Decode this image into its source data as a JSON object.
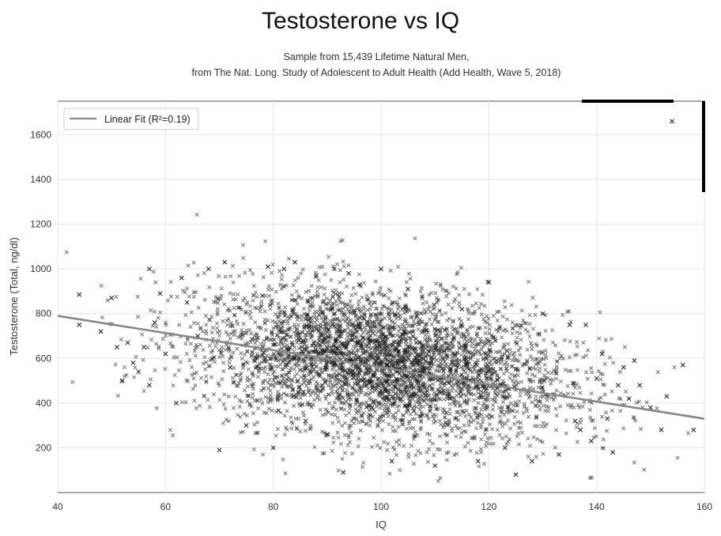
{
  "chart_data": {
    "type": "scatter",
    "title": "Testosterone vs IQ",
    "subtitle_lines": [
      "Sample from 15,439 Lifetime Natural Men,",
      "from The Nat. Long. Study of Adolescent to Adult Health (Add Health, Wave 5, 2018)"
    ],
    "xlabel": "IQ",
    "ylabel": "Testosterone (Total, ng/dl)",
    "xlim": [
      40,
      160
    ],
    "ylim": [
      0,
      1750
    ],
    "x_ticks": [
      40,
      60,
      80,
      100,
      120,
      140,
      160
    ],
    "y_ticks": [
      200,
      400,
      600,
      800,
      1000,
      1200,
      1400,
      1600
    ],
    "grid": true,
    "legend": {
      "position": "top-left",
      "entries": [
        "Linear Fit (R²=0.19)"
      ]
    },
    "series": [
      {
        "type": "scatter",
        "marker": "x",
        "color": "#111111",
        "sample_size": 15439,
        "points": [
          [
            44,
            885
          ],
          [
            44,
            750
          ],
          [
            48,
            720
          ],
          [
            50,
            870
          ],
          [
            51,
            650
          ],
          [
            52,
            500
          ],
          [
            53,
            670
          ],
          [
            54,
            580
          ],
          [
            55,
            540
          ],
          [
            56,
            650
          ],
          [
            57,
            1000
          ],
          [
            57,
            480
          ],
          [
            58,
            760
          ],
          [
            59,
            890
          ],
          [
            60,
            620
          ],
          [
            62,
            400
          ],
          [
            63,
            960
          ],
          [
            64,
            850
          ],
          [
            66,
            700
          ],
          [
            68,
            1000
          ],
          [
            70,
            190
          ],
          [
            71,
            1030
          ],
          [
            72,
            560
          ],
          [
            75,
            300
          ],
          [
            78,
            880
          ],
          [
            79,
            1010
          ],
          [
            80,
            200
          ],
          [
            82,
            1000
          ],
          [
            84,
            1030
          ],
          [
            86,
            320
          ],
          [
            88,
            970
          ],
          [
            90,
            260
          ],
          [
            93,
            90
          ],
          [
            94,
            980
          ],
          [
            96,
            930
          ],
          [
            100,
            1000
          ],
          [
            102,
            140
          ],
          [
            105,
            910
          ],
          [
            110,
            120
          ],
          [
            115,
            820
          ],
          [
            118,
            140
          ],
          [
            120,
            940
          ],
          [
            123,
            200
          ],
          [
            125,
            80
          ],
          [
            128,
            140
          ],
          [
            130,
            800
          ],
          [
            133,
            170
          ],
          [
            135,
            750
          ],
          [
            136,
            320
          ],
          [
            137,
            280
          ],
          [
            138,
            750
          ],
          [
            139,
            230
          ],
          [
            140,
            510
          ],
          [
            141,
            620
          ],
          [
            142,
            330
          ],
          [
            143,
            180
          ],
          [
            144,
            480
          ],
          [
            145,
            560
          ],
          [
            146,
            420
          ],
          [
            147,
            590
          ],
          [
            148,
            480
          ],
          [
            150,
            380
          ],
          [
            152,
            280
          ],
          [
            153,
            430
          ],
          [
            154,
            1660
          ],
          [
            156,
            570
          ],
          [
            158,
            280
          ]
        ]
      },
      {
        "type": "line",
        "name": "Linear Fit (R²=0.19)",
        "color": "#888888",
        "x": [
          40,
          160
        ],
        "y": [
          790,
          330
        ]
      }
    ],
    "density_center": {
      "x": 100,
      "y": 580
    },
    "density_spread": {
      "x": 15,
      "y": 160
    }
  }
}
